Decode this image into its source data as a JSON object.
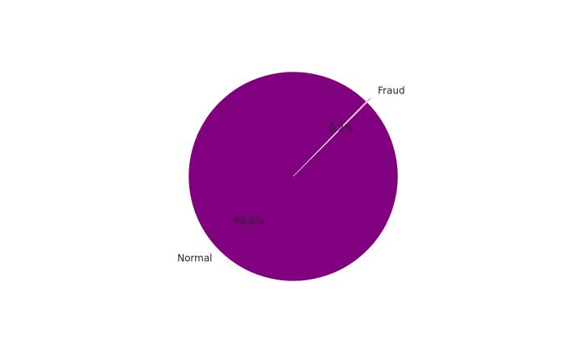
{
  "chart_data": {
    "type": "pie",
    "categories": [
      "Fraud",
      "Normal"
    ],
    "values": [
      0.2,
      99.8
    ],
    "value_labels": [
      "0.2%",
      "99.8%"
    ],
    "colors": [
      "#ff69b4",
      "#800080"
    ],
    "explode": [
      0.05,
      0
    ],
    "start_angle_deg": 45,
    "direction": "counterclockwise"
  }
}
